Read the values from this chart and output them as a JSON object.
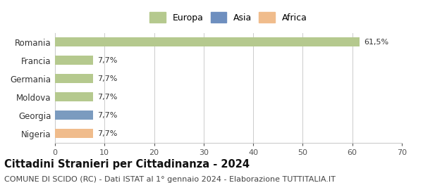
{
  "categories": [
    "Romania",
    "Francia",
    "Germania",
    "Moldova",
    "Georgia",
    "Nigeria"
  ],
  "values": [
    61.5,
    7.7,
    7.7,
    7.7,
    7.7,
    7.7
  ],
  "labels": [
    "61,5%",
    "7,7%",
    "7,7%",
    "7,7%",
    "7,7%",
    "7,7%"
  ],
  "bar_colors": [
    "#b5c98e",
    "#b5c98e",
    "#b5c98e",
    "#b5c98e",
    "#7b9bbf",
    "#f0bc8c"
  ],
  "legend_items": [
    {
      "label": "Europa",
      "color": "#b5c98e"
    },
    {
      "label": "Asia",
      "color": "#6e8fbf"
    },
    {
      "label": "Africa",
      "color": "#f0bc8c"
    }
  ],
  "xlim": [
    0,
    70
  ],
  "xticks": [
    0,
    10,
    20,
    30,
    40,
    50,
    60,
    70
  ],
  "title": "Cittadini Stranieri per Cittadinanza - 2024",
  "subtitle": "COMUNE DI SCIDO (RC) - Dati ISTAT al 1° gennaio 2024 - Elaborazione TUTTITALIA.IT",
  "title_fontsize": 10.5,
  "subtitle_fontsize": 8,
  "background_color": "#ffffff",
  "grid_color": "#cccccc",
  "bar_height": 0.5
}
